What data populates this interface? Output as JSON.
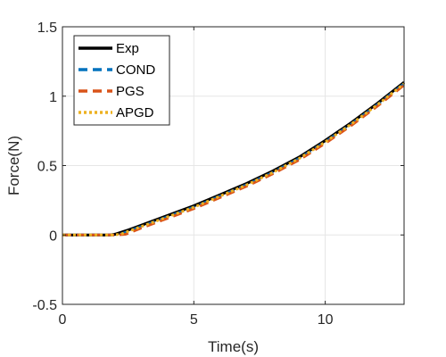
{
  "chart_data": {
    "type": "line",
    "xlabel": "Time(s)",
    "ylabel": "Force(N)",
    "xlim": [
      0,
      13
    ],
    "ylim": [
      -0.5,
      1.5
    ],
    "x_ticks": [
      0,
      5,
      10
    ],
    "y_ticks": [
      -0.5,
      0,
      0.5,
      1,
      1.5
    ],
    "x_tick_labels": [
      "0",
      "5",
      "10"
    ],
    "y_tick_labels": [
      "-0.5",
      "0",
      "0.5",
      "1",
      "1.5"
    ],
    "grid": true,
    "legend_position": "top-left",
    "series": [
      {
        "name": "Exp",
        "color": "#000000",
        "style": "solid",
        "x": [
          0,
          1.0,
          1.8,
          2.0,
          2.5,
          3.0,
          4.0,
          5.0,
          6.0,
          7.0,
          8.0,
          9.0,
          10.0,
          11.0,
          12.0,
          13.0
        ],
        "y": [
          0,
          0,
          0,
          0.005,
          0.035,
          0.07,
          0.14,
          0.21,
          0.29,
          0.37,
          0.46,
          0.56,
          0.68,
          0.81,
          0.95,
          1.1
        ]
      },
      {
        "name": "COND",
        "color": "#0072BD",
        "style": "dashed",
        "x": [
          0,
          1.0,
          1.9,
          2.2,
          3.0,
          4.0,
          5.0,
          6.0,
          7.0,
          8.0,
          9.0,
          10.0,
          11.0,
          12.0,
          13.0
        ],
        "y": [
          0,
          0,
          0,
          0.005,
          0.06,
          0.13,
          0.2,
          0.28,
          0.36,
          0.45,
          0.55,
          0.67,
          0.8,
          0.94,
          1.09
        ]
      },
      {
        "name": "PGS",
        "color": "#D95319",
        "style": "dashed",
        "x": [
          0,
          1.0,
          2.0,
          2.4,
          3.0,
          4.0,
          5.0,
          6.0,
          7.0,
          8.0,
          9.0,
          10.0,
          11.0,
          12.0,
          13.0
        ],
        "y": [
          0,
          0,
          0,
          0.005,
          0.05,
          0.12,
          0.19,
          0.27,
          0.35,
          0.44,
          0.54,
          0.66,
          0.79,
          0.93,
          1.08
        ]
      },
      {
        "name": "APGD",
        "color": "#EDB120",
        "style": "dotted",
        "x": [
          0,
          1.0,
          1.9,
          2.2,
          3.0,
          4.0,
          5.0,
          6.0,
          7.0,
          8.0,
          9.0,
          10.0,
          11.0,
          12.0,
          13.0
        ],
        "y": [
          0,
          0,
          0,
          0.005,
          0.06,
          0.13,
          0.2,
          0.28,
          0.36,
          0.45,
          0.55,
          0.67,
          0.8,
          0.94,
          1.09
        ]
      }
    ]
  }
}
